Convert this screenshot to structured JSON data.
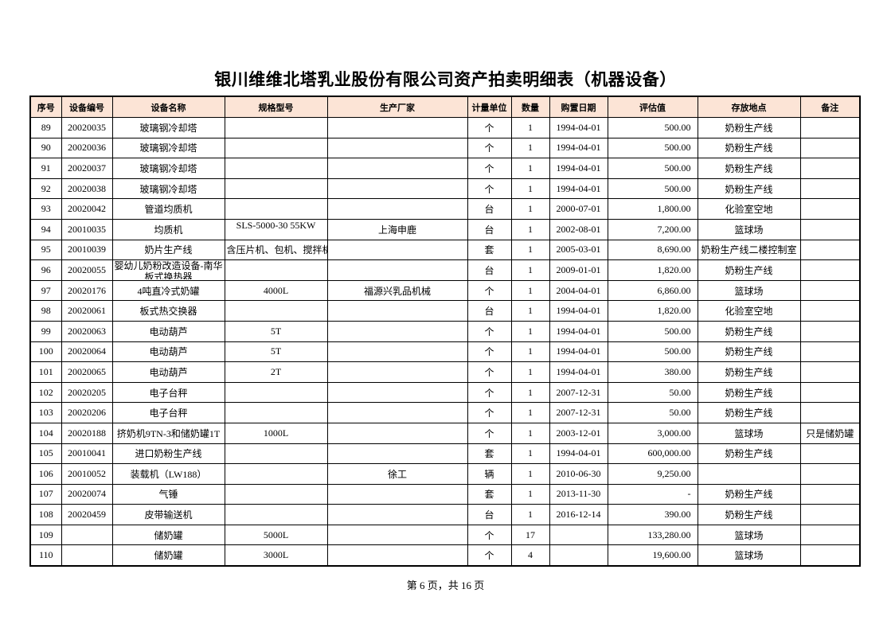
{
  "title": "银川维维北塔乳业股份有限公司资产拍卖明细表（机器设备）",
  "columns": [
    "序号",
    "设备编号",
    "设备名称",
    "规格型号",
    "生产厂家",
    "计量单位",
    "数量",
    "购置日期",
    "评估值",
    "存放地点",
    "备注"
  ],
  "rows": [
    [
      "89",
      "20020035",
      "玻璃钢冷却塔",
      "",
      "",
      "个",
      "1",
      "1994-04-01",
      "500.00",
      "奶粉生产线",
      ""
    ],
    [
      "90",
      "20020036",
      "玻璃钢冷却塔",
      "",
      "",
      "个",
      "1",
      "1994-04-01",
      "500.00",
      "奶粉生产线",
      ""
    ],
    [
      "91",
      "20020037",
      "玻璃钢冷却塔",
      "",
      "",
      "个",
      "1",
      "1994-04-01",
      "500.00",
      "奶粉生产线",
      ""
    ],
    [
      "92",
      "20020038",
      "玻璃钢冷却塔",
      "",
      "",
      "个",
      "1",
      "1994-04-01",
      "500.00",
      "奶粉生产线",
      ""
    ],
    [
      "93",
      "20020042",
      "管道均质机",
      "",
      "",
      "台",
      "1",
      "2000-07-01",
      "1,800.00",
      "化验室空地",
      ""
    ],
    [
      "94",
      "20010035",
      "均质机",
      "SLS-5000-30 55KW",
      "上海申鹿",
      "台",
      "1",
      "2002-08-01",
      "7,200.00",
      "篮球场",
      ""
    ],
    [
      "95",
      "20010039",
      "奶片生产线",
      "含压片机、包机、搅拌机",
      "",
      "套",
      "1",
      "2005-03-01",
      "8,690.00",
      "奶粉生产线二楼控制室",
      ""
    ],
    [
      "96",
      "20020055",
      "婴幼儿奶粉改造设备-南华板式换热器",
      "",
      "",
      "台",
      "1",
      "2009-01-01",
      "1,820.00",
      "奶粉生产线",
      ""
    ],
    [
      "97",
      "20020176",
      "4吨直冷式奶罐",
      "4000L",
      "福源兴乳品机械",
      "个",
      "1",
      "2004-04-01",
      "6,860.00",
      "篮球场",
      ""
    ],
    [
      "98",
      "20020061",
      "板式热交换器",
      "",
      "",
      "台",
      "1",
      "1994-04-01",
      "1,820.00",
      "化验室空地",
      ""
    ],
    [
      "99",
      "20020063",
      "电动葫芦",
      "5T",
      "",
      "个",
      "1",
      "1994-04-01",
      "500.00",
      "奶粉生产线",
      ""
    ],
    [
      "100",
      "20020064",
      "电动葫芦",
      "5T",
      "",
      "个",
      "1",
      "1994-04-01",
      "500.00",
      "奶粉生产线",
      ""
    ],
    [
      "101",
      "20020065",
      "电动葫芦",
      "2T",
      "",
      "个",
      "1",
      "1994-04-01",
      "380.00",
      "奶粉生产线",
      ""
    ],
    [
      "102",
      "20020205",
      "电子台秤",
      "",
      "",
      "个",
      "1",
      "2007-12-31",
      "50.00",
      "奶粉生产线",
      ""
    ],
    [
      "103",
      "20020206",
      "电子台秤",
      "",
      "",
      "个",
      "1",
      "2007-12-31",
      "50.00",
      "奶粉生产线",
      ""
    ],
    [
      "104",
      "20020188",
      "挤奶机9TN-3和储奶罐1T",
      "1000L",
      "",
      "个",
      "1",
      "2003-12-01",
      "3,000.00",
      "篮球场",
      "只是储奶罐"
    ],
    [
      "105",
      "20010041",
      "进口奶粉生产线",
      "",
      "",
      "套",
      "1",
      "1994-04-01",
      "600,000.00",
      "奶粉生产线",
      ""
    ],
    [
      "106",
      "20010052",
      "装载机（LW188）",
      "",
      "徐工",
      "辆",
      "1",
      "2010-06-30",
      "9,250.00",
      "",
      ""
    ],
    [
      "107",
      "20020074",
      "气锤",
      "",
      "",
      "套",
      "1",
      "2013-11-30",
      "-",
      "奶粉生产线",
      ""
    ],
    [
      "108",
      "20020459",
      "皮带输送机",
      "",
      "",
      "台",
      "1",
      "2016-12-14",
      "390.00",
      "奶粉生产线",
      ""
    ],
    [
      "109",
      "",
      "储奶罐",
      "5000L",
      "",
      "个",
      "17",
      "",
      "133,280.00",
      "篮球场",
      ""
    ],
    [
      "110",
      "",
      "储奶罐",
      "3000L",
      "",
      "个",
      "4",
      "",
      "19,600.00",
      "篮球场",
      ""
    ]
  ],
  "footer": "第 6 页，共 16 页"
}
